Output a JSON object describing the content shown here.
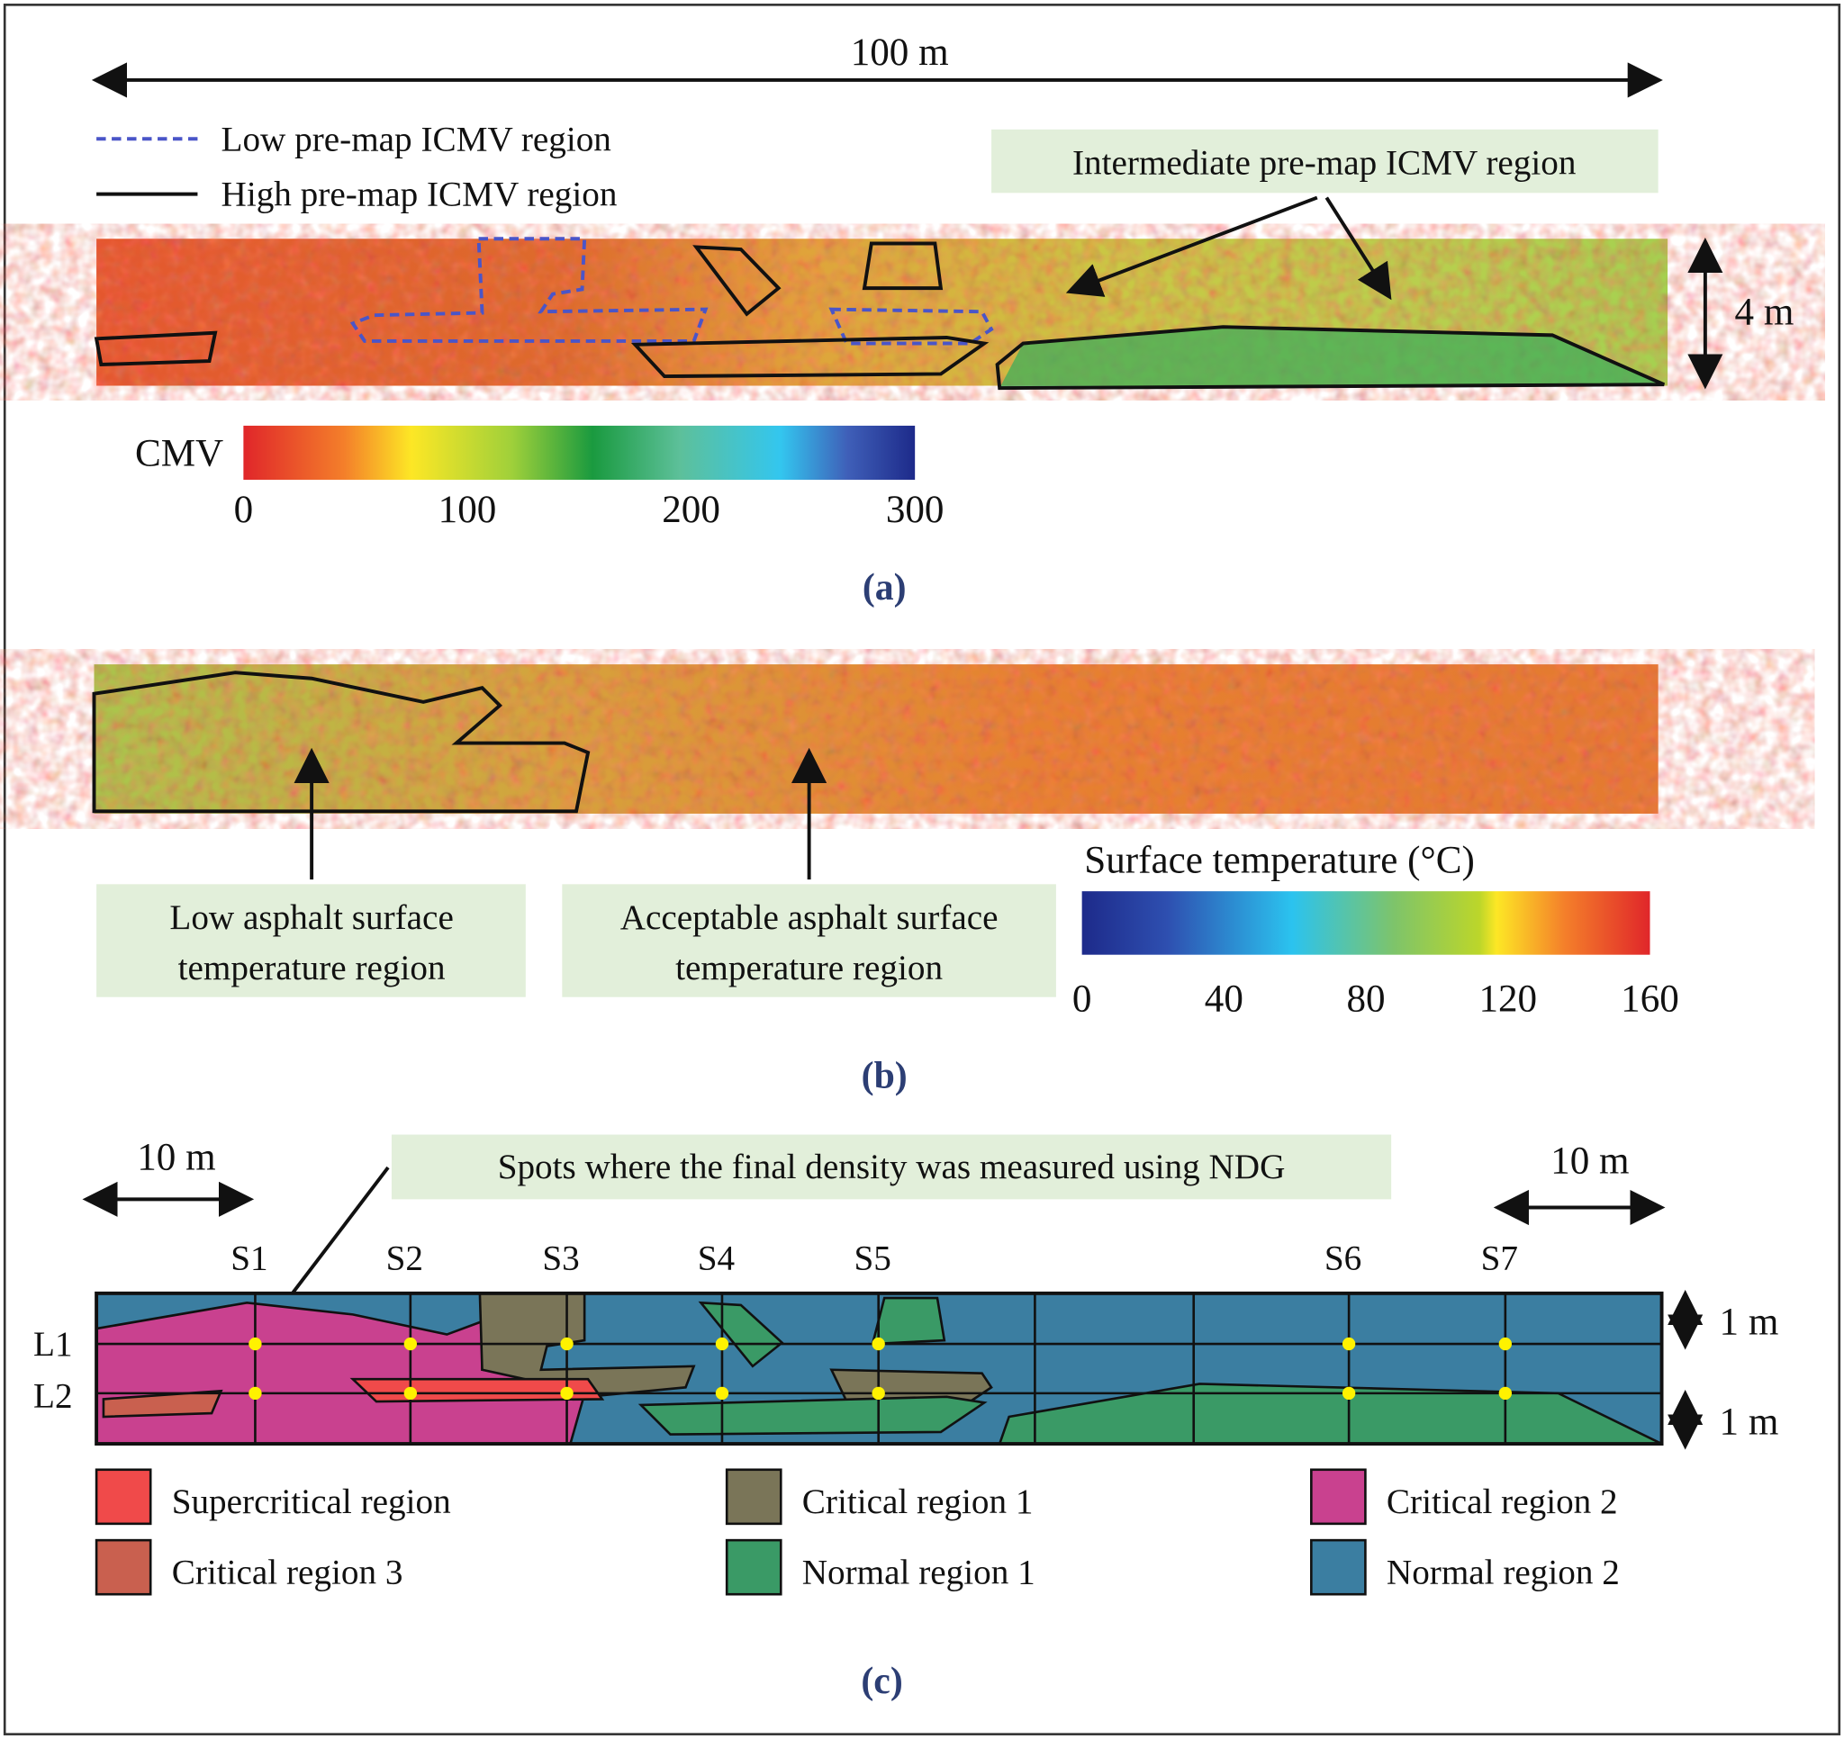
{
  "panel_a": {
    "length_label": "100 m",
    "width_label": "4 m",
    "legend": [
      "Low pre-map ICMV region",
      "High pre-map ICMV region"
    ],
    "callout": "Intermediate pre-map ICMV region",
    "colorbar": {
      "label": "CMV",
      "range": [
        0,
        300
      ],
      "ticks": [
        0,
        100,
        200,
        300
      ]
    },
    "caption": "(a)"
  },
  "panel_b": {
    "callouts": [
      {
        "lines": [
          "Low asphalt surface",
          "temperature region"
        ]
      },
      {
        "lines": [
          "Acceptable asphalt surface",
          "temperature region"
        ]
      }
    ],
    "colorbar": {
      "label": "Surface temperature (°C)",
      "range": [
        0,
        160
      ],
      "ticks": [
        0,
        40,
        80,
        120,
        160
      ]
    },
    "caption": "(b)"
  },
  "panel_c": {
    "scale_labels": [
      "10 m",
      "10 m"
    ],
    "callout": "Spots where the final density was measured using NDG",
    "stations": [
      "S1",
      "S2",
      "S3",
      "S4",
      "S5",
      "S6",
      "S7"
    ],
    "lanes": [
      "L1",
      "L2"
    ],
    "lane_labels": [
      "1 m",
      "1 m"
    ],
    "legend": [
      "Supercritical region",
      "Critical region 1",
      "Critical region 2",
      "Critical region 3",
      "Normal region 1",
      "Normal region 2"
    ],
    "caption": "(c)"
  }
}
